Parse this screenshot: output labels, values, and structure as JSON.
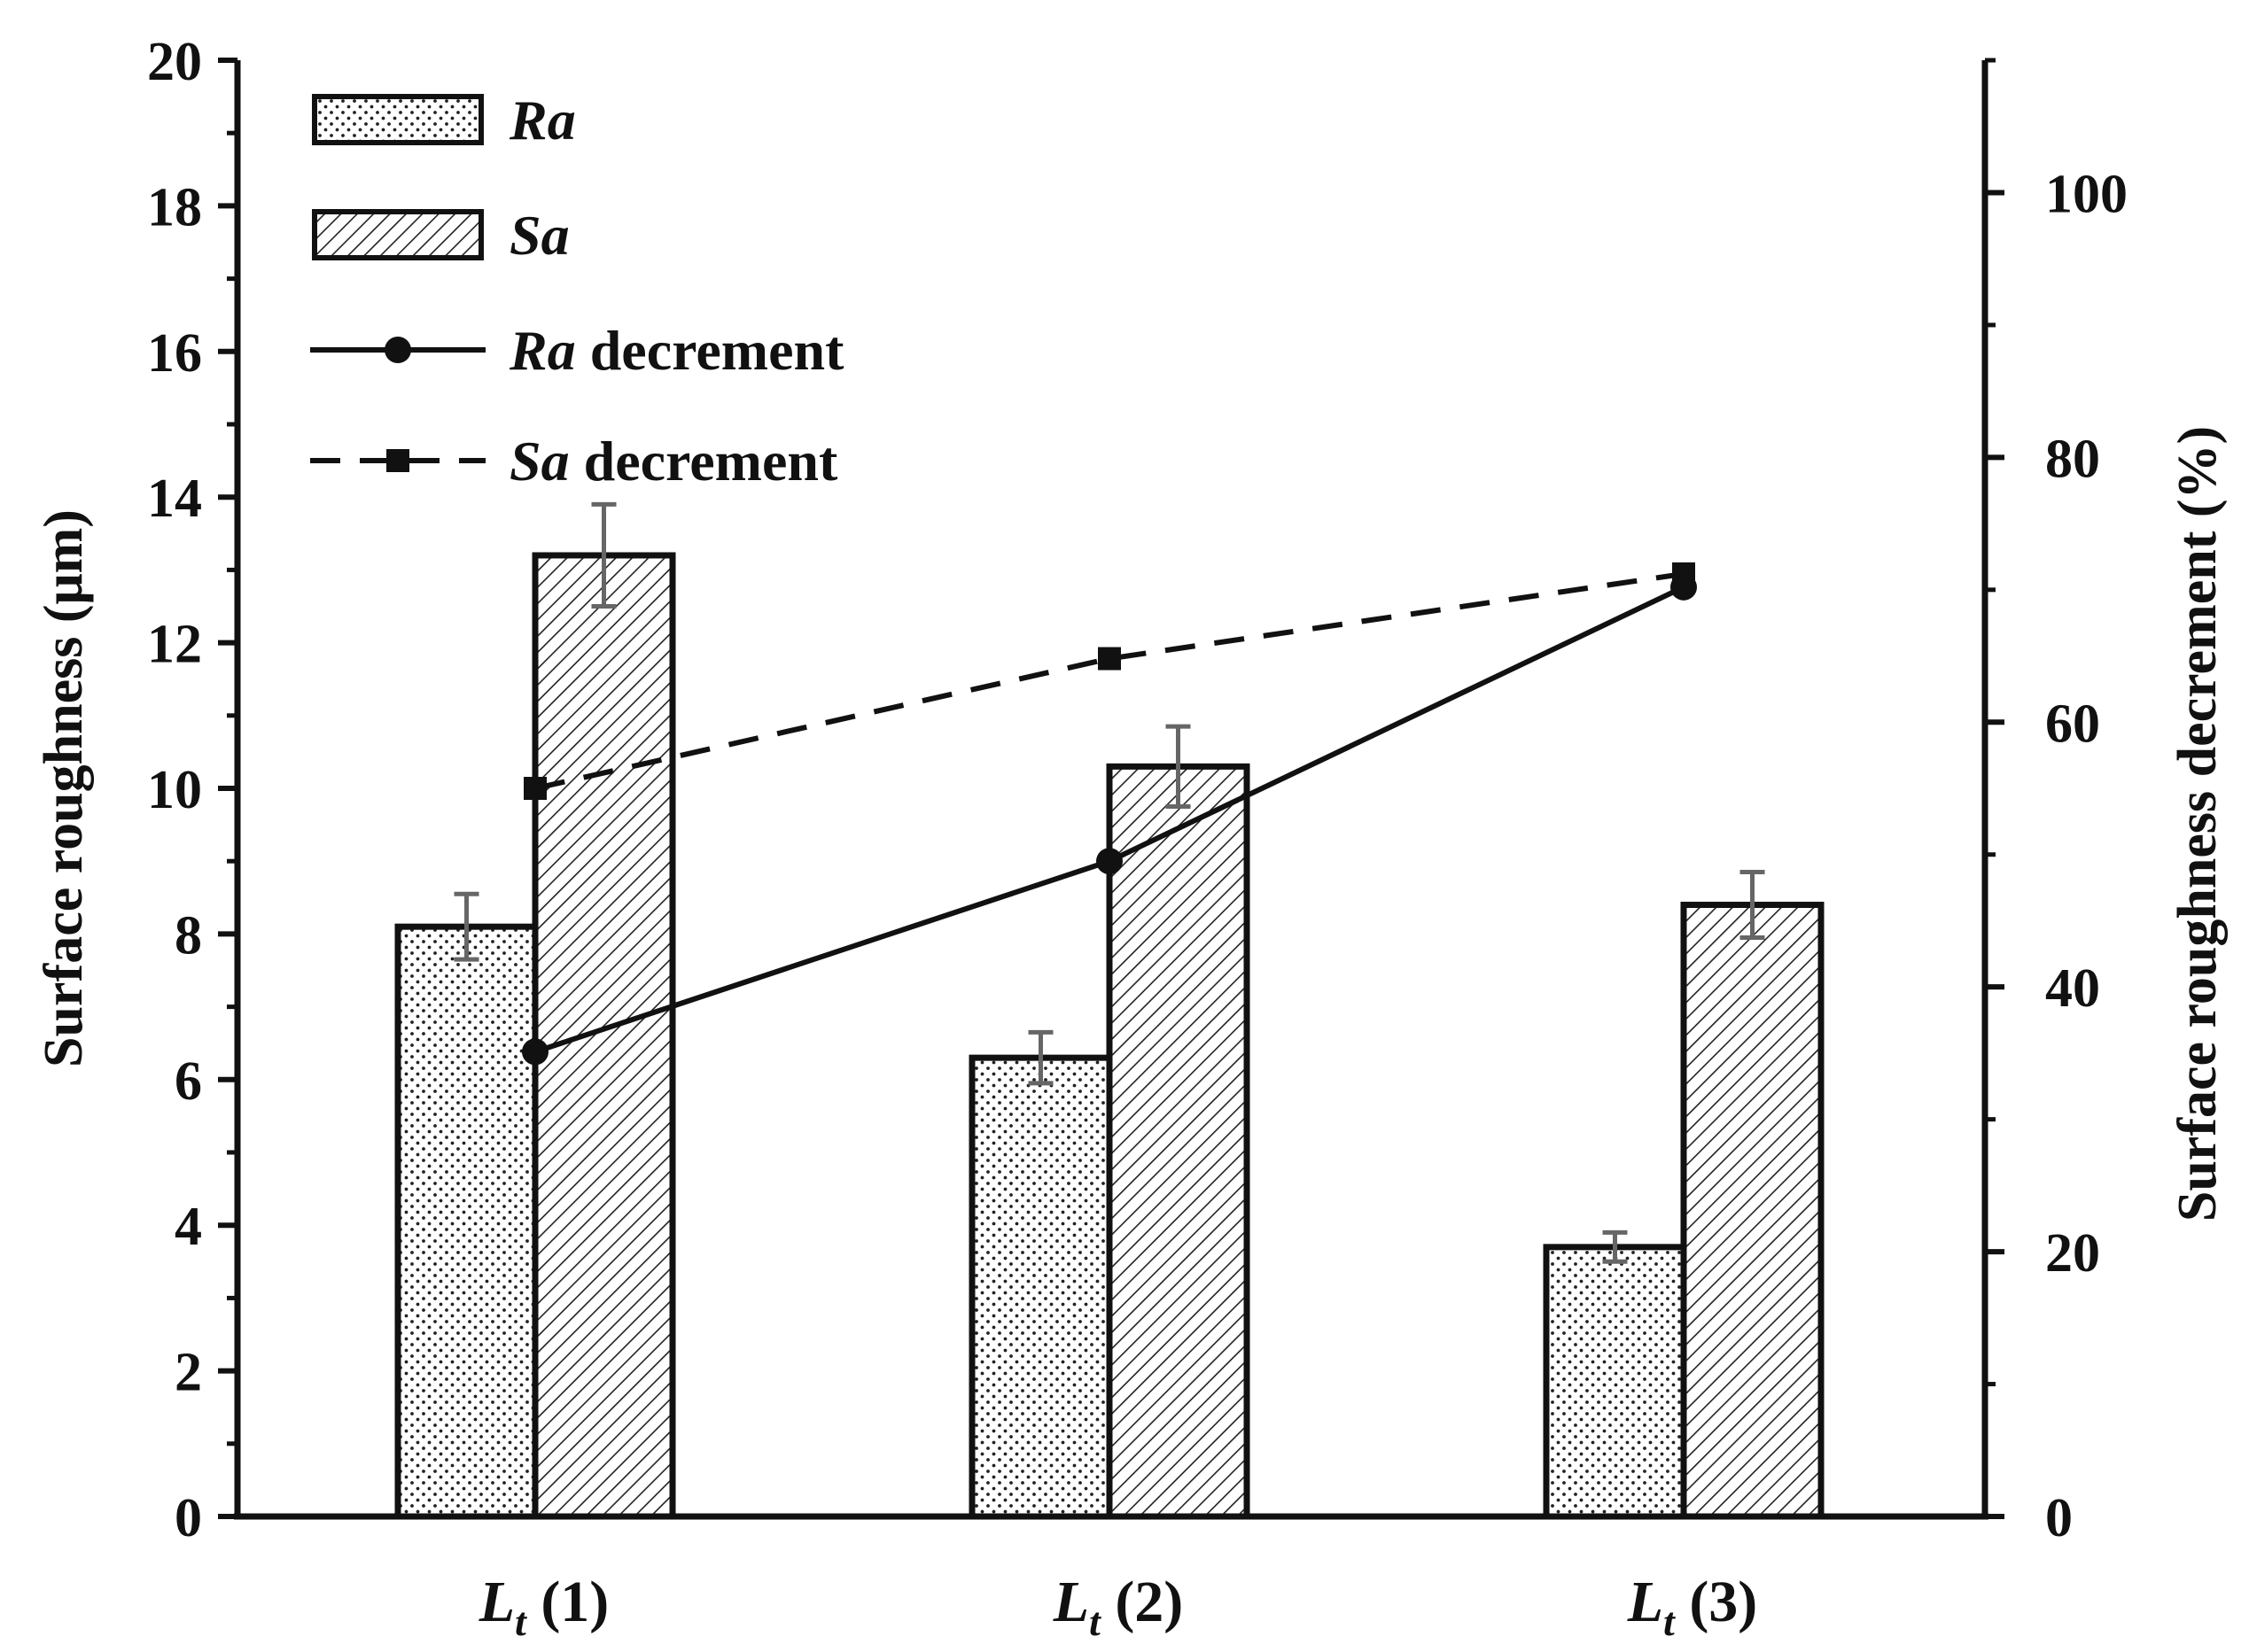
{
  "chart_data": {
    "type": "bar",
    "categories": [
      "(1)",
      "(2)",
      "(3)"
    ],
    "category_symbol": "L",
    "category_subscript": "t",
    "series": [
      {
        "name": "Ra",
        "kind": "bar",
        "axis": "left",
        "values": [
          8.1,
          6.3,
          3.7
        ],
        "errors": [
          0.45,
          0.35,
          0.2
        ]
      },
      {
        "name": "Sa",
        "kind": "bar",
        "axis": "left",
        "values": [
          13.2,
          10.3,
          8.4
        ],
        "errors": [
          0.7,
          0.55,
          0.45
        ]
      },
      {
        "name": "Ra decrement",
        "kind": "line",
        "axis": "right",
        "values": [
          35.1,
          49.5,
          70.2
        ]
      },
      {
        "name": "Sa decrement",
        "kind": "line-dashed",
        "axis": "right",
        "values": [
          55.0,
          64.8,
          71.2
        ]
      }
    ],
    "legend": [
      {
        "symbol": "Ra",
        "suffix": ""
      },
      {
        "symbol": "Sa",
        "suffix": ""
      },
      {
        "symbol": "Ra",
        "suffix": " decrement"
      },
      {
        "symbol": "Sa",
        "suffix": " decrement"
      }
    ],
    "ylabel": "Surface roughness (μm)",
    "y2label": "Surface roughness decrement (%)",
    "ylim": [
      0,
      20
    ],
    "y2lim": [
      0,
      110
    ],
    "yticks": [
      "0",
      "2",
      "4",
      "6",
      "8",
      "10",
      "12",
      "14",
      "16",
      "18",
      "20"
    ],
    "y2ticks": [
      "0",
      "20",
      "40",
      "60",
      "80",
      "100"
    ],
    "grid": false,
    "legend_position": "top-left",
    "colors": {
      "axis": "#111111",
      "error_bar": "#666666",
      "bar_fill": "#ffffff"
    }
  }
}
